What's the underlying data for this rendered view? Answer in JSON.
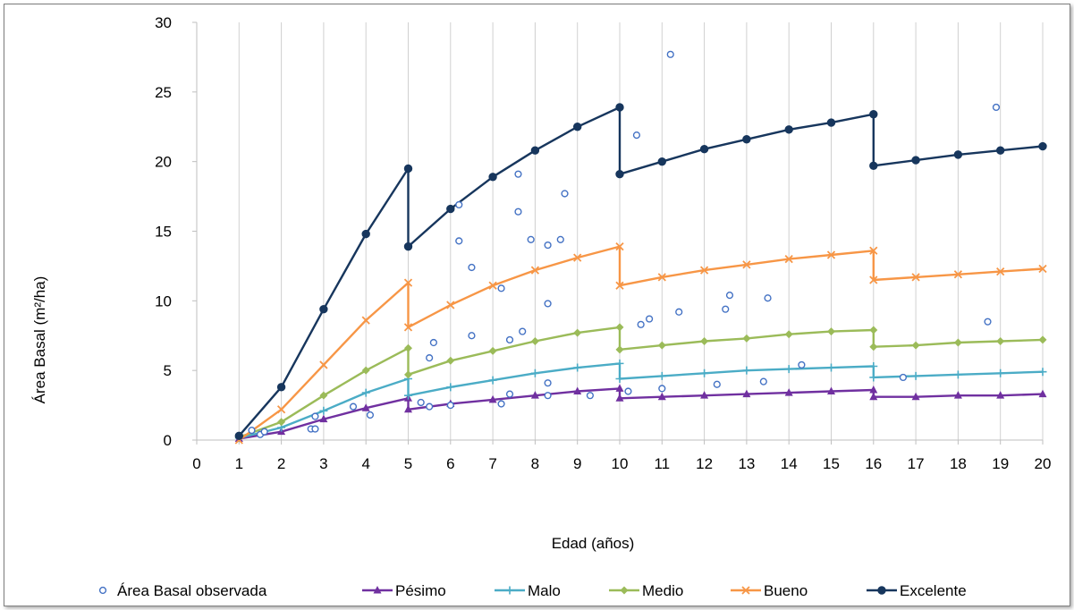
{
  "chart_data": {
    "type": "line",
    "xlabel": "Edad (años)",
    "ylabel": "Área Basal (m²/ha)",
    "xlim": [
      0,
      20
    ],
    "ylim": [
      0,
      30
    ],
    "x_ticks": [
      "0",
      "1",
      "2",
      "3",
      "4",
      "5",
      "6",
      "7",
      "8",
      "9",
      "10",
      "11",
      "12",
      "13",
      "14",
      "15",
      "16",
      "17",
      "18",
      "19",
      "20"
    ],
    "y_ticks": [
      "0",
      "5",
      "10",
      "15",
      "20",
      "25",
      "30"
    ],
    "grid": "vertical",
    "legend_position": "bottom",
    "observed": {
      "name": "Área Basal observada",
      "color": "#4472c4",
      "points": [
        [
          1.3,
          0.7
        ],
        [
          1.5,
          0.4
        ],
        [
          1.6,
          0.6
        ],
        [
          2.7,
          0.8
        ],
        [
          2.8,
          0.8
        ],
        [
          2.8,
          1.7
        ],
        [
          3.7,
          2.4
        ],
        [
          4.1,
          1.8
        ],
        [
          5.3,
          2.7
        ],
        [
          5.5,
          2.4
        ],
        [
          5.5,
          5.9
        ],
        [
          5.6,
          7.0
        ],
        [
          6.2,
          16.9
        ],
        [
          6.2,
          14.3
        ],
        [
          6.5,
          12.4
        ],
        [
          6.5,
          7.5
        ],
        [
          6.0,
          2.5
        ],
        [
          7.2,
          10.9
        ],
        [
          7.2,
          2.6
        ],
        [
          7.4,
          7.2
        ],
        [
          7.4,
          3.3
        ],
        [
          7.6,
          19.1
        ],
        [
          7.6,
          16.4
        ],
        [
          7.7,
          7.8
        ],
        [
          7.9,
          14.4
        ],
        [
          8.3,
          14.0
        ],
        [
          8.3,
          9.8
        ],
        [
          8.3,
          4.1
        ],
        [
          8.3,
          3.2
        ],
        [
          8.6,
          14.4
        ],
        [
          8.7,
          17.7
        ],
        [
          9.3,
          3.2
        ],
        [
          10.2,
          3.5
        ],
        [
          10.4,
          21.9
        ],
        [
          10.5,
          8.3
        ],
        [
          10.7,
          8.7
        ],
        [
          11.0,
          3.7
        ],
        [
          11.2,
          27.7
        ],
        [
          11.4,
          9.2
        ],
        [
          12.3,
          4.0
        ],
        [
          12.5,
          9.4
        ],
        [
          12.6,
          10.4
        ],
        [
          13.4,
          4.2
        ],
        [
          13.5,
          10.2
        ],
        [
          14.3,
          5.4
        ],
        [
          16.7,
          4.5
        ],
        [
          18.7,
          8.5
        ],
        [
          18.9,
          23.9
        ]
      ]
    },
    "series": [
      {
        "name": "Pésimo",
        "color": "#7030a0",
        "marker": "triangle",
        "segments": [
          [
            [
              1,
              0.1
            ],
            [
              2,
              0.6
            ],
            [
              3,
              1.5
            ],
            [
              4,
              2.3
            ],
            [
              5,
              3.0
            ]
          ],
          [
            [
              5,
              2.2
            ],
            [
              6,
              2.6
            ],
            [
              7,
              2.9
            ],
            [
              8,
              3.2
            ],
            [
              9,
              3.5
            ],
            [
              10,
              3.7
            ]
          ],
          [
            [
              10,
              3.0
            ],
            [
              11,
              3.1
            ],
            [
              12,
              3.2
            ],
            [
              13,
              3.3
            ],
            [
              14,
              3.4
            ],
            [
              15,
              3.5
            ],
            [
              16,
              3.6
            ]
          ],
          [
            [
              16,
              3.1
            ],
            [
              17,
              3.1
            ],
            [
              18,
              3.2
            ],
            [
              19,
              3.2
            ],
            [
              20,
              3.3
            ]
          ]
        ]
      },
      {
        "name": "Malo",
        "color": "#4bacc6",
        "marker": "plus",
        "segments": [
          [
            [
              1,
              0.15
            ],
            [
              2,
              0.9
            ],
            [
              3,
              2.1
            ],
            [
              4,
              3.4
            ],
            [
              5,
              4.4
            ]
          ],
          [
            [
              5,
              3.2
            ],
            [
              6,
              3.8
            ],
            [
              7,
              4.3
            ],
            [
              8,
              4.8
            ],
            [
              9,
              5.2
            ],
            [
              10,
              5.5
            ]
          ],
          [
            [
              10,
              4.4
            ],
            [
              11,
              4.6
            ],
            [
              12,
              4.8
            ],
            [
              13,
              5.0
            ],
            [
              14,
              5.1
            ],
            [
              15,
              5.2
            ],
            [
              16,
              5.3
            ]
          ],
          [
            [
              16,
              4.5
            ],
            [
              17,
              4.6
            ],
            [
              18,
              4.7
            ],
            [
              19,
              4.8
            ],
            [
              20,
              4.9
            ]
          ]
        ]
      },
      {
        "name": "Medio",
        "color": "#9bbb59",
        "marker": "diamond",
        "segments": [
          [
            [
              1,
              0.2
            ],
            [
              2,
              1.3
            ],
            [
              3,
              3.2
            ],
            [
              4,
              5.0
            ],
            [
              5,
              6.6
            ]
          ],
          [
            [
              5,
              4.7
            ],
            [
              6,
              5.7
            ],
            [
              7,
              6.4
            ],
            [
              8,
              7.1
            ],
            [
              9,
              7.7
            ],
            [
              10,
              8.1
            ]
          ],
          [
            [
              10,
              6.5
            ],
            [
              11,
              6.8
            ],
            [
              12,
              7.1
            ],
            [
              13,
              7.3
            ],
            [
              14,
              7.6
            ],
            [
              15,
              7.8
            ],
            [
              16,
              7.9
            ]
          ],
          [
            [
              16,
              6.7
            ],
            [
              17,
              6.8
            ],
            [
              18,
              7.0
            ],
            [
              19,
              7.1
            ],
            [
              20,
              7.2
            ]
          ]
        ]
      },
      {
        "name": "Bueno",
        "color": "#f79646",
        "marker": "x",
        "segments": [
          [
            [
              1,
              0.0
            ],
            [
              2,
              2.2
            ],
            [
              3,
              5.4
            ],
            [
              4,
              8.6
            ],
            [
              5,
              11.3
            ]
          ],
          [
            [
              5,
              8.1
            ],
            [
              6,
              9.7
            ],
            [
              7,
              11.1
            ],
            [
              8,
              12.2
            ],
            [
              9,
              13.1
            ],
            [
              10,
              13.9
            ]
          ],
          [
            [
              10,
              11.1
            ],
            [
              11,
              11.7
            ],
            [
              12,
              12.2
            ],
            [
              13,
              12.6
            ],
            [
              14,
              13.0
            ],
            [
              15,
              13.3
            ],
            [
              16,
              13.6
            ]
          ],
          [
            [
              16,
              11.5
            ],
            [
              17,
              11.7
            ],
            [
              18,
              11.9
            ],
            [
              19,
              12.1
            ],
            [
              20,
              12.3
            ]
          ]
        ]
      },
      {
        "name": "Excelente",
        "color": "#17365d",
        "marker": "circle",
        "segments": [
          [
            [
              1,
              0.3
            ],
            [
              2,
              3.8
            ],
            [
              3,
              9.4
            ],
            [
              4,
              14.8
            ],
            [
              5,
              19.5
            ]
          ],
          [
            [
              5,
              13.9
            ],
            [
              6,
              16.6
            ],
            [
              7,
              18.9
            ],
            [
              8,
              20.8
            ],
            [
              9,
              22.5
            ],
            [
              10,
              23.9
            ]
          ],
          [
            [
              10,
              19.1
            ],
            [
              11,
              20.0
            ],
            [
              12,
              20.9
            ],
            [
              13,
              21.6
            ],
            [
              14,
              22.3
            ],
            [
              15,
              22.8
            ],
            [
              16,
              23.4
            ]
          ],
          [
            [
              16,
              19.7
            ],
            [
              17,
              20.1
            ],
            [
              18,
              20.5
            ],
            [
              19,
              20.8
            ],
            [
              20,
              21.1
            ]
          ]
        ]
      }
    ]
  }
}
